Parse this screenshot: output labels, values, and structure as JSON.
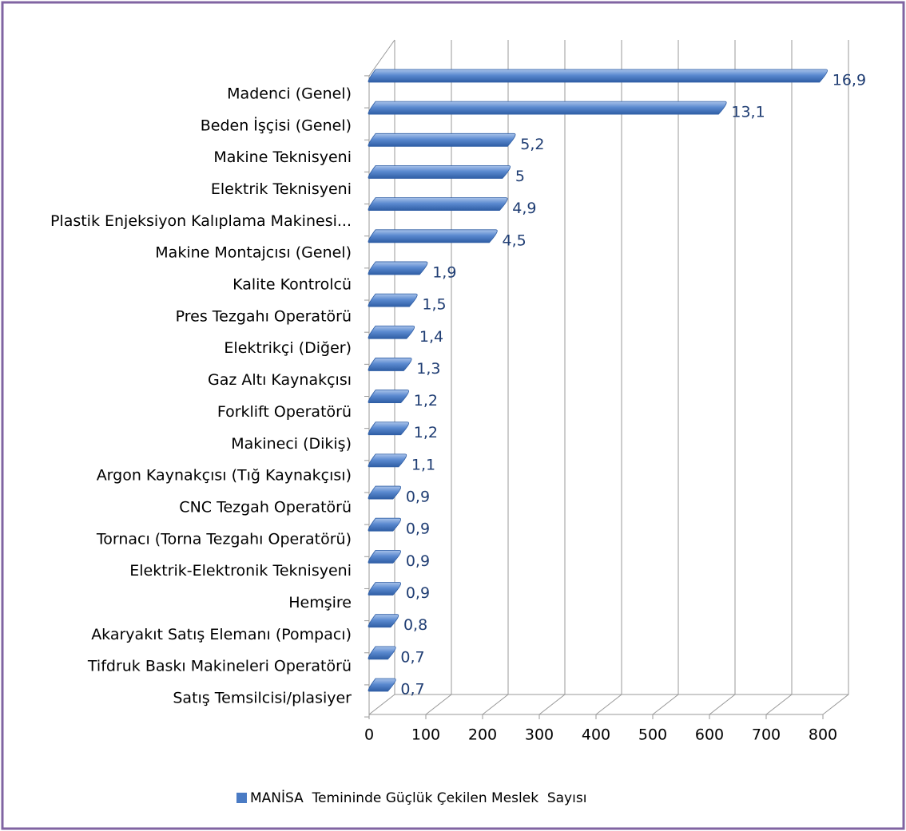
{
  "chart_data": {
    "type": "bar",
    "orientation": "horizontal",
    "categories": [
      "Madenci (Genel)",
      "Beden İşçisi (Genel)",
      "Makine Teknisyeni",
      "Elektrik Teknisyeni",
      "Plastik Enjeksiyon Kalıplama Makinesi...",
      "Makine Montajcısı (Genel)",
      "Kalite Kontrolcü",
      "Pres Tezgahı Operatörü",
      "Elektrikçi (Diğer)",
      "Gaz Altı Kaynakçısı",
      "Forklift Operatörü",
      "Makineci (Dikiş)",
      "Argon Kaynakçısı (Tığ Kaynakçısı)",
      "CNC Tezgah Operatörü",
      "Tornacı (Torna Tezgahı Operatörü)",
      "Elektrik-Elektronik Teknisyeni",
      "Hemşire",
      "Akaryakıt Satış Elemanı (Pompacı)",
      "Tifdruk Baskı Makineleri Operatörü",
      "Satış Temsilcisi/plasiyer"
    ],
    "series": [
      {
        "name": "MANİSA  Temininde Güçlük Çekilen Meslek  Sayısı",
        "color": "#4a7bc4",
        "values": [
          794,
          616,
          244,
          235,
          230,
          212,
          89,
          71,
          66,
          61,
          56,
          56,
          52,
          42,
          42,
          42,
          42,
          38,
          33,
          33
        ],
        "value_labels": [
          "16,9",
          "13,1",
          "5,2",
          "5",
          "4,9",
          "4,5",
          "1,9",
          "1,5",
          "1,4",
          "1,3",
          "1,2",
          "1,2",
          "1,1",
          "0,9",
          "0,9",
          "0,9",
          "0,9",
          "0,8",
          "0,7",
          "0,7"
        ]
      }
    ],
    "xlim": [
      0,
      800
    ],
    "xticks": [
      0,
      100,
      200,
      300,
      400,
      500,
      600,
      700,
      800
    ],
    "grid": true,
    "legend": "bottom"
  }
}
